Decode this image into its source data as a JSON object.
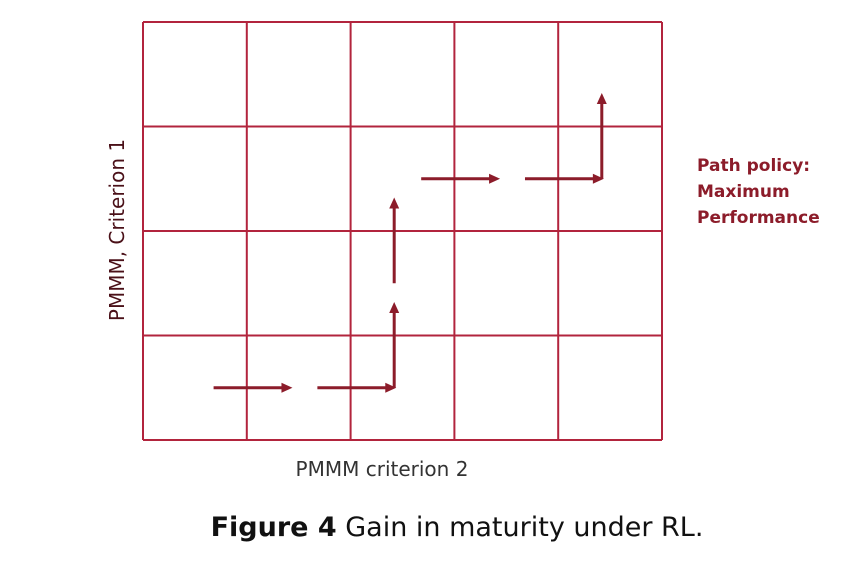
{
  "axes": {
    "y_label": "PMMM, Criterion 1",
    "x_label": "PMMM criterion 2"
  },
  "grid": {
    "columns": 5,
    "rows": 4
  },
  "policy_label": [
    "Path policy:",
    "Maximum",
    "Performance"
  ],
  "path": [
    {
      "col": 0,
      "row": 0,
      "dir": "right"
    },
    {
      "col": 1,
      "row": 0,
      "dir": "right"
    },
    {
      "col": 2,
      "row": 0,
      "dir": "up"
    },
    {
      "col": 2,
      "row": 1,
      "dir": "up"
    },
    {
      "col": 2,
      "row": 2,
      "dir": "right"
    },
    {
      "col": 3,
      "row": 2,
      "dir": "right"
    },
    {
      "col": 4,
      "row": 2,
      "dir": "up"
    }
  ],
  "caption": {
    "bold": "Figure 4",
    "text": " Gain in maturity under RL."
  },
  "colors": {
    "grid": "#b2243d",
    "arrow": "#8c1c2a",
    "policy_text": "#8c1c2a"
  }
}
